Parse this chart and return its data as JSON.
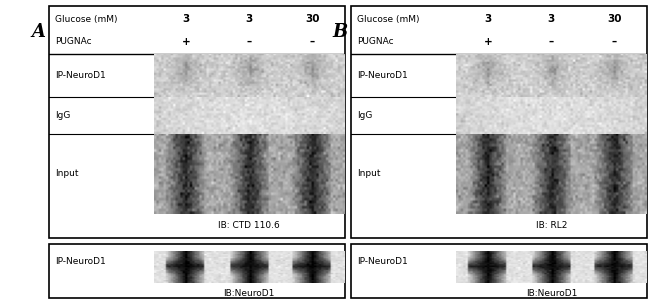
{
  "fig_width": 6.5,
  "fig_height": 3.04,
  "background_color": "#ffffff",
  "panel_A": {
    "label": "A",
    "glucose_row": "Glucose (mM)",
    "pugnac_row": "PUGNAc",
    "glucose_vals": [
      "3",
      "3",
      "30"
    ],
    "pugnac_vals": [
      "+",
      "–",
      "–"
    ],
    "row_labels": [
      "IP-NeuroD1",
      "IgG",
      "Input"
    ],
    "ib_label": "IB: CTD 110.6",
    "bottom_label": "IP-NeuroD1",
    "bottom_ib": "IB:NeuroD1"
  },
  "panel_B": {
    "label": "B",
    "glucose_row": "Glucose (mM)",
    "pugnac_row": "PUGNAc",
    "glucose_vals": [
      "3",
      "3",
      "30"
    ],
    "pugnac_vals": [
      "+",
      "–",
      "–"
    ],
    "row_labels": [
      "IP-NeuroD1",
      "IgG",
      "Input"
    ],
    "ib_label": "IB: RL2",
    "bottom_label": "IP-NeuroD1",
    "bottom_ib": "IB:NeuroD1"
  }
}
